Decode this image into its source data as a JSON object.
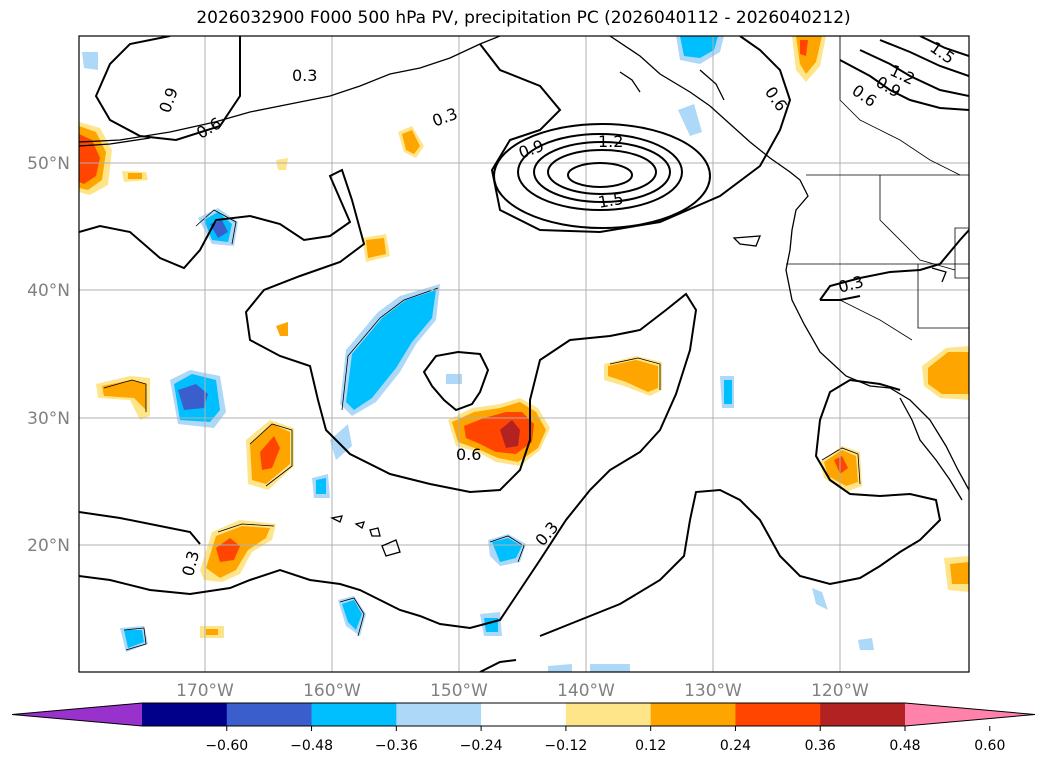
{
  "title": "2026032900 F000 500 hPa PV, precipitation PC (2026040112 - 2026040212)",
  "lat_labels": [
    "50°N",
    "40°N",
    "30°N",
    "20°N"
  ],
  "lon_labels": [
    "170°W",
    "160°W",
    "150°W",
    "140°W",
    "130°W",
    "120°W"
  ],
  "contour_labels": [
    "0.3",
    "0.3",
    "0.6",
    "0.9",
    "0.9",
    "1.2",
    "1.5",
    "0.6",
    "1.2",
    "0.9",
    "0.6",
    "1.5",
    "0.3",
    "0.6",
    "0.3",
    "0.3"
  ],
  "colorbar": {
    "ticks": [
      "−0.60",
      "−0.48",
      "−0.36",
      "−0.24",
      "−0.12",
      "0.12",
      "0.24",
      "0.36",
      "0.48",
      "0.60"
    ],
    "colors": [
      "#9932cc",
      "#00008b",
      "#3a5fcd",
      "#00bfff",
      "#add8f7",
      "#ffffff",
      "#ffe58a",
      "#ffa500",
      "#ff4500",
      "#b22222",
      "#ff82ab"
    ]
  }
}
